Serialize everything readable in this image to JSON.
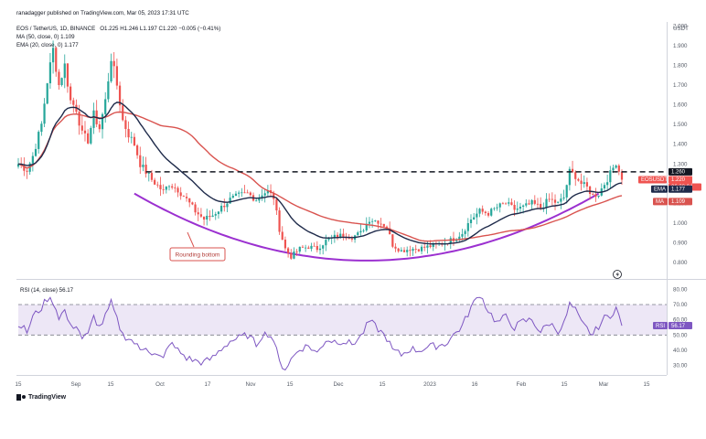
{
  "header": {
    "published": "ranadagger published on TradingView.com, Mar 05, 2023 17:31 UTC",
    "symbol_line": "EOS / TetherUS, 1D, BINANCE",
    "ohlc": "O1.225  H1.246  L1.197  C1.220  −0.005 (−0.41%)",
    "ma_line": "MA (50, close, 0)  1.109",
    "ema_line": "EMA (20, close, 0)  1.177",
    "currency": "USDT"
  },
  "annotation": {
    "label": "Rounding bottom"
  },
  "footer": {
    "brand": "TradingView"
  },
  "colors": {
    "up": "#26a69a",
    "down": "#ef5350",
    "ema": "#1e2a4a",
    "ma": "#d9534f",
    "curve": "#9b30d0",
    "rsi": "#7e57c2",
    "rsi_band": "#ede7f6",
    "level": "#131722"
  },
  "chart_data": [
    {
      "type": "candlestick",
      "title": "EOS / TetherUS, 1D, BINANCE",
      "ylabel": "USDT",
      "ylim": [
        0.74,
        2.02
      ],
      "y_ticks": [
        "2.000",
        "1.900",
        "1.800",
        "1.700",
        "1.600",
        "1.500",
        "1.400",
        "1.300",
        "1.200",
        "1.100",
        "1.000",
        "0.900",
        "0.800"
      ],
      "x_ticks": [
        "15",
        "Sep",
        "15",
        "Oct",
        "17",
        "Nov",
        "15",
        "Dec",
        "15",
        "2023",
        "16",
        "Feb",
        "15",
        "Mar",
        "15"
      ],
      "resistance_level": 1.26,
      "price_labels": [
        {
          "name": "level",
          "text": "1.260",
          "value": 1.26
        },
        {
          "name": "price",
          "text": "1.220",
          "sub": "EOSUSDT",
          "time": "06:28:04",
          "value": 1.22
        },
        {
          "name": "ema",
          "text": "1.177",
          "sub": "EMA",
          "value": 1.177
        },
        {
          "name": "ma",
          "text": "1.109",
          "sub": "MA",
          "value": 1.109
        }
      ],
      "price_anchors": [
        [
          0,
          1.3
        ],
        [
          3,
          1.27
        ],
        [
          5,
          1.34
        ],
        [
          8,
          1.5
        ],
        [
          10,
          1.72
        ],
        [
          12,
          1.88
        ],
        [
          14,
          1.7
        ],
        [
          16,
          1.8
        ],
        [
          18,
          1.62
        ],
        [
          20,
          1.58
        ],
        [
          22,
          1.45
        ],
        [
          24,
          1.42
        ],
        [
          26,
          1.55
        ],
        [
          28,
          1.48
        ],
        [
          30,
          1.62
        ],
        [
          32,
          1.84
        ],
        [
          34,
          1.7
        ],
        [
          36,
          1.52
        ],
        [
          38,
          1.45
        ],
        [
          40,
          1.4
        ],
        [
          42,
          1.3
        ],
        [
          44,
          1.26
        ],
        [
          46,
          1.22
        ],
        [
          48,
          1.19
        ],
        [
          50,
          1.16
        ],
        [
          52,
          1.2
        ],
        [
          55,
          1.17
        ],
        [
          58,
          1.12
        ],
        [
          61,
          1.06
        ],
        [
          64,
          1.02
        ],
        [
          67,
          1.04
        ],
        [
          70,
          1.08
        ],
        [
          73,
          1.12
        ],
        [
          76,
          1.14
        ],
        [
          79,
          1.15
        ],
        [
          82,
          1.12
        ],
        [
          84,
          1.15
        ],
        [
          86,
          1.16
        ],
        [
          88,
          1.13
        ],
        [
          90,
          0.97
        ],
        [
          92,
          0.87
        ],
        [
          94,
          0.83
        ],
        [
          97,
          0.87
        ],
        [
          100,
          0.88
        ],
        [
          103,
          0.87
        ],
        [
          106,
          0.91
        ],
        [
          109,
          0.93
        ],
        [
          112,
          0.94
        ],
        [
          115,
          0.93
        ],
        [
          118,
          0.95
        ],
        [
          121,
          1.02
        ],
        [
          124,
          1.01
        ],
        [
          127,
          0.98
        ],
        [
          129,
          0.89
        ],
        [
          132,
          0.86
        ],
        [
          135,
          0.87
        ],
        [
          138,
          0.87
        ],
        [
          141,
          0.88
        ],
        [
          144,
          0.89
        ],
        [
          147,
          0.9
        ],
        [
          150,
          0.92
        ],
        [
          153,
          0.95
        ],
        [
          156,
          1.02
        ],
        [
          159,
          1.06
        ],
        [
          162,
          1.05
        ],
        [
          165,
          1.08
        ],
        [
          168,
          1.1
        ],
        [
          171,
          1.07
        ],
        [
          174,
          1.08
        ],
        [
          177,
          1.1
        ],
        [
          180,
          1.08
        ],
        [
          183,
          1.12
        ],
        [
          186,
          1.1
        ],
        [
          188,
          1.13
        ],
        [
          190,
          1.26
        ],
        [
          192,
          1.24
        ],
        [
          194,
          1.2
        ],
        [
          196,
          1.18
        ],
        [
          198,
          1.14
        ],
        [
          200,
          1.15
        ],
        [
          202,
          1.2
        ],
        [
          204,
          1.25
        ],
        [
          206,
          1.31
        ],
        [
          208,
          1.22
        ]
      ],
      "series": [
        {
          "name": "EMA (20, close, 0)",
          "last_value": 1.177
        },
        {
          "name": "MA (50, close, 0)",
          "last_value": 1.109
        }
      ]
    },
    {
      "type": "line",
      "title": "RSI (14, close) 56.17",
      "ylim": [
        25,
        85
      ],
      "y_ticks": [
        "80.00",
        "70.00",
        "60.00",
        "50.00",
        "40.00",
        "30.00"
      ],
      "bands": [
        70,
        50
      ],
      "last_value": 56.17,
      "last_label": "RSI",
      "last_text": "56.17",
      "rsi_anchors": [
        [
          0,
          58
        ],
        [
          3,
          52
        ],
        [
          5,
          62
        ],
        [
          8,
          68
        ],
        [
          10,
          74
        ],
        [
          12,
          72
        ],
        [
          14,
          62
        ],
        [
          16,
          66
        ],
        [
          18,
          55
        ],
        [
          20,
          57
        ],
        [
          22,
          48
        ],
        [
          24,
          50
        ],
        [
          26,
          62
        ],
        [
          28,
          55
        ],
        [
          30,
          62
        ],
        [
          32,
          71
        ],
        [
          34,
          60
        ],
        [
          36,
          50
        ],
        [
          38,
          48
        ],
        [
          40,
          45
        ],
        [
          42,
          40
        ],
        [
          44,
          43
        ],
        [
          46,
          38
        ],
        [
          48,
          36
        ],
        [
          50,
          34
        ],
        [
          52,
          45
        ],
        [
          55,
          40
        ],
        [
          58,
          35
        ],
        [
          61,
          33
        ],
        [
          64,
          32
        ],
        [
          67,
          35
        ],
        [
          70,
          41
        ],
        [
          73,
          46
        ],
        [
          76,
          48
        ],
        [
          79,
          50
        ],
        [
          82,
          44
        ],
        [
          84,
          50
        ],
        [
          86,
          51
        ],
        [
          88,
          47
        ],
        [
          90,
          32
        ],
        [
          92,
          28
        ],
        [
          94,
          34
        ],
        [
          97,
          41
        ],
        [
          100,
          43
        ],
        [
          103,
          38
        ],
        [
          106,
          47
        ],
        [
          109,
          46
        ],
        [
          112,
          46
        ],
        [
          115,
          44
        ],
        [
          118,
          49
        ],
        [
          121,
          59
        ],
        [
          124,
          54
        ],
        [
          127,
          48
        ],
        [
          129,
          40
        ],
        [
          132,
          37
        ],
        [
          135,
          41
        ],
        [
          138,
          40
        ],
        [
          141,
          42
        ],
        [
          144,
          43
        ],
        [
          147,
          44
        ],
        [
          150,
          50
        ],
        [
          153,
          56
        ],
        [
          156,
          68
        ],
        [
          159,
          77
        ],
        [
          162,
          66
        ],
        [
          165,
          58
        ],
        [
          168,
          62
        ],
        [
          171,
          55
        ],
        [
          174,
          59
        ],
        [
          177,
          60
        ],
        [
          180,
          52
        ],
        [
          183,
          58
        ],
        [
          186,
          53
        ],
        [
          188,
          57
        ],
        [
          190,
          70
        ],
        [
          192,
          66
        ],
        [
          194,
          58
        ],
        [
          196,
          54
        ],
        [
          198,
          50
        ],
        [
          200,
          56
        ],
        [
          202,
          61
        ],
        [
          204,
          63
        ],
        [
          206,
          68
        ],
        [
          208,
          56
        ]
      ]
    }
  ]
}
